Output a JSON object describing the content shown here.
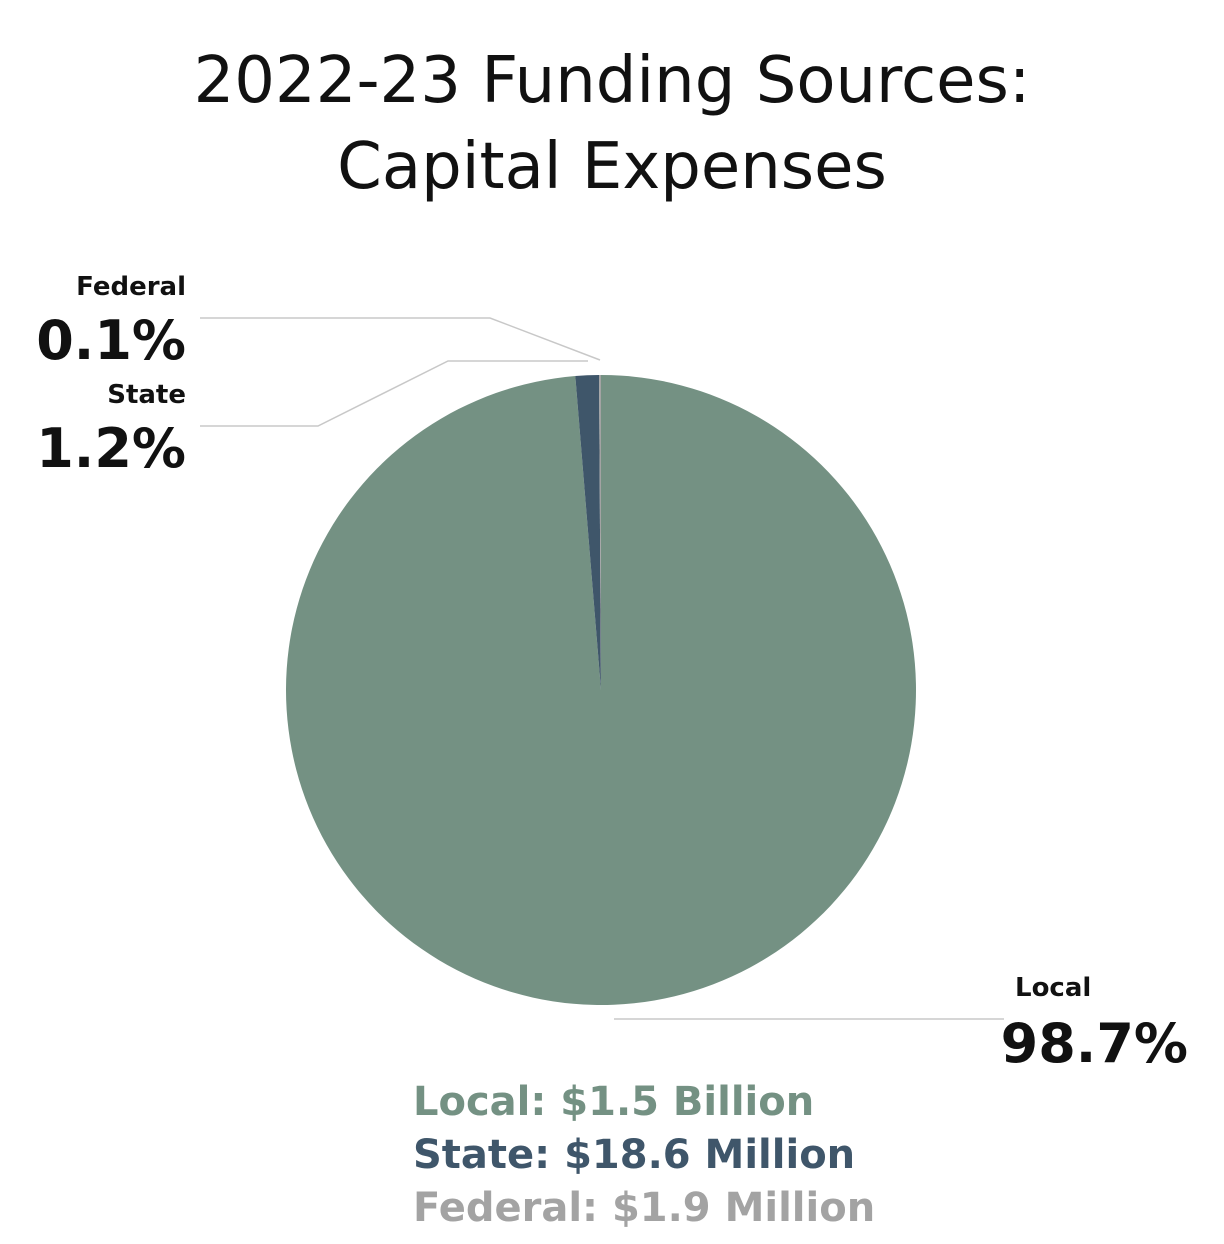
{
  "chart_data": {
    "type": "pie",
    "title": [
      "2022-23 Funding Sources:",
      "Capital Expenses"
    ],
    "slices": [
      {
        "name": "Local",
        "percent": 98.7,
        "percent_label": "98.7%",
        "color": "#749183",
        "amount_label": "Local: $1.5 Billion"
      },
      {
        "name": "State",
        "percent": 1.2,
        "percent_label": "1.2%",
        "color": "#3f566a",
        "amount_label": "State: $18.6 Million"
      },
      {
        "name": "Federal",
        "percent": 0.1,
        "percent_label": "0.1%",
        "color": "#a3a3a3",
        "amount_label": "Federal: $1.9 Million"
      }
    ],
    "leader_line_color": "#c8c8c8"
  }
}
